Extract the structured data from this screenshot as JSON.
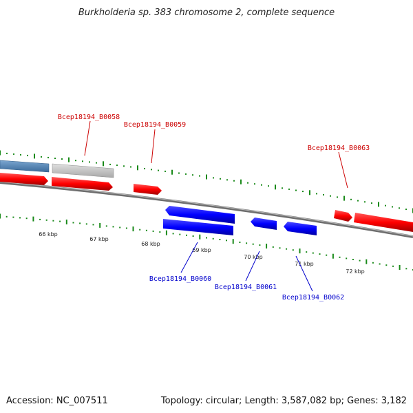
{
  "title": "Burkholderia sp. 383 chromosome 2, complete sequence",
  "footer": {
    "accession": "Accession: NC_007511",
    "summary": "Topology: circular; Length: 3,587,082 bp; Genes: 3,182"
  },
  "colors": {
    "forward_gene": "#ff0000",
    "reverse_gene": "#0000ff",
    "forward_label": "#cc0000",
    "reverse_label": "#0000cc",
    "feature_blue": "#4a7fb5",
    "feature_grey": "#c4c4c4",
    "tick": "#1a8a1a",
    "backbone": "#808080"
  },
  "ruler": {
    "tick_labels": [
      "66 kbp",
      "67 kbp",
      "68 kbp",
      "69 kbp",
      "70 kbp",
      "71 kbp",
      "72 kbp"
    ]
  },
  "gene_labels": {
    "B0058": "Bcep18194_B0058",
    "B0059": "Bcep18194_B0059",
    "B0060": "Bcep18194_B0060",
    "B0061": "Bcep18194_B0061",
    "B0062": "Bcep18194_B0062",
    "B0063": "Bcep18194_B0063"
  }
}
